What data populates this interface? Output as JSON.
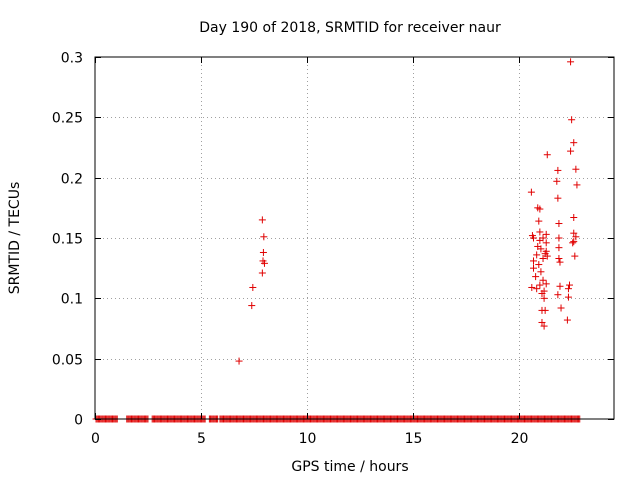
{
  "chart_data": {
    "type": "scatter",
    "title": "Day 190 of 2018, SRMTID for receiver naur",
    "xlabel": "GPS time / hours",
    "ylabel": "SRMTID / TECUs",
    "xlim": [
      0,
      24.5
    ],
    "ylim": [
      0,
      0.3
    ],
    "xticks": [
      0,
      5,
      10,
      15,
      20
    ],
    "xtick_labels": [
      "0",
      "5",
      "10",
      "15",
      "20"
    ],
    "yticks": [
      0,
      0.05,
      0.1,
      0.15,
      0.2,
      0.25,
      0.3
    ],
    "ytick_labels": [
      "0",
      "0.05",
      "0.1",
      "0.15",
      "0.2",
      "0.25",
      "0.3"
    ],
    "grid": true,
    "marker": "+",
    "color": "#e00000",
    "zero_baseline": {
      "description_y": 0,
      "segments_hours": [
        [
          0.05,
          1.1
        ],
        [
          1.5,
          2.5
        ],
        [
          2.7,
          5.2
        ],
        [
          5.4,
          5.8
        ],
        [
          5.9,
          22.9
        ]
      ]
    },
    "points": [
      [
        6.8,
        0.048
      ],
      [
        7.4,
        0.094
      ],
      [
        7.45,
        0.109
      ],
      [
        7.9,
        0.121
      ],
      [
        7.93,
        0.131
      ],
      [
        7.95,
        0.138
      ],
      [
        7.97,
        0.151
      ],
      [
        7.9,
        0.165
      ],
      [
        8.0,
        0.129
      ],
      [
        20.6,
        0.188
      ],
      [
        20.65,
        0.152
      ],
      [
        20.7,
        0.125
      ],
      [
        20.7,
        0.131
      ],
      [
        20.62,
        0.109
      ],
      [
        20.7,
        0.15
      ],
      [
        20.8,
        0.118
      ],
      [
        20.85,
        0.108
      ],
      [
        20.85,
        0.136
      ],
      [
        20.9,
        0.143
      ],
      [
        20.9,
        0.175
      ],
      [
        20.95,
        0.164
      ],
      [
        20.95,
        0.128
      ],
      [
        21.0,
        0.111
      ],
      [
        21.0,
        0.148
      ],
      [
        21.0,
        0.155
      ],
      [
        21.0,
        0.174
      ],
      [
        21.05,
        0.141
      ],
      [
        21.05,
        0.122
      ],
      [
        21.1,
        0.09
      ],
      [
        21.1,
        0.08
      ],
      [
        21.1,
        0.104
      ],
      [
        21.15,
        0.115
      ],
      [
        21.15,
        0.133
      ],
      [
        21.15,
        0.15
      ],
      [
        21.2,
        0.106
      ],
      [
        21.2,
        0.077
      ],
      [
        21.25,
        0.137
      ],
      [
        21.3,
        0.153
      ],
      [
        21.3,
        0.146
      ],
      [
        21.3,
        0.112
      ],
      [
        21.2,
        0.1
      ],
      [
        21.25,
        0.09
      ],
      [
        21.35,
        0.219
      ],
      [
        21.35,
        0.135
      ],
      [
        21.3,
        0.139
      ],
      [
        21.8,
        0.197
      ],
      [
        21.85,
        0.183
      ],
      [
        21.85,
        0.206
      ],
      [
        21.9,
        0.162
      ],
      [
        21.9,
        0.142
      ],
      [
        21.9,
        0.15
      ],
      [
        21.9,
        0.133
      ],
      [
        21.95,
        0.13
      ],
      [
        21.85,
        0.103
      ],
      [
        21.95,
        0.11
      ],
      [
        22.0,
        0.092
      ],
      [
        22.3,
        0.082
      ],
      [
        22.35,
        0.101
      ],
      [
        22.35,
        0.108
      ],
      [
        22.4,
        0.111
      ],
      [
        22.45,
        0.296
      ],
      [
        22.45,
        0.222
      ],
      [
        22.5,
        0.248
      ],
      [
        22.55,
        0.146
      ],
      [
        22.6,
        0.229
      ],
      [
        22.6,
        0.167
      ],
      [
        22.6,
        0.154
      ],
      [
        22.6,
        0.147
      ],
      [
        22.65,
        0.135
      ],
      [
        22.7,
        0.207
      ],
      [
        22.75,
        0.194
      ],
      [
        22.7,
        0.151
      ]
    ]
  }
}
